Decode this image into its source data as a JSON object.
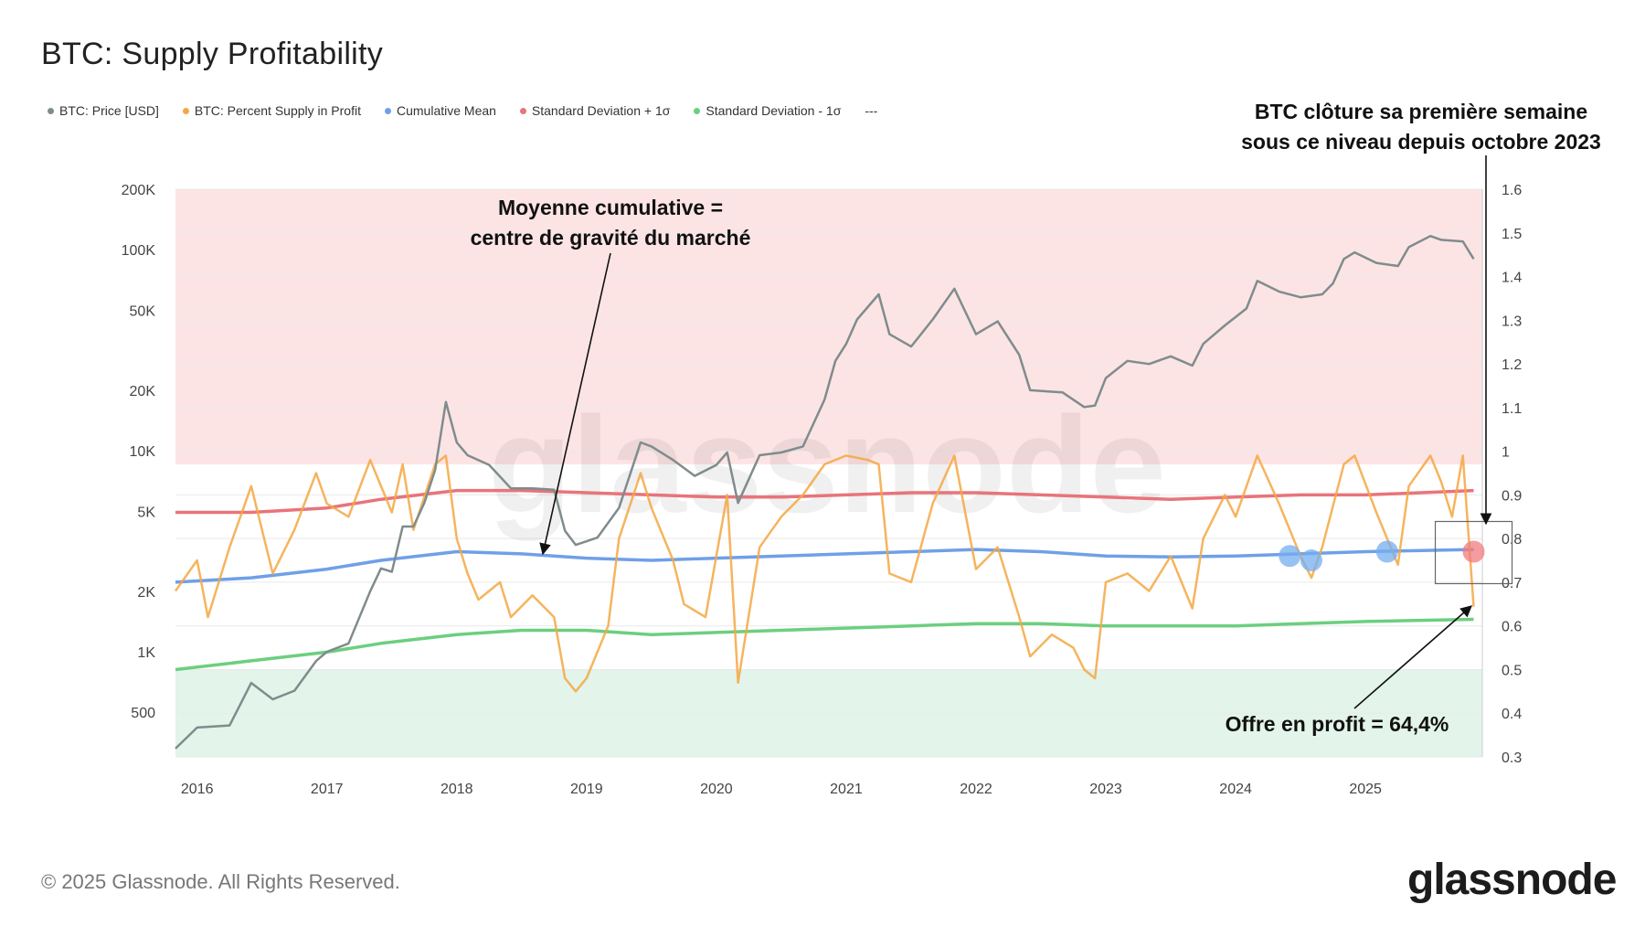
{
  "header": {
    "title": "BTC: Supply Profitability"
  },
  "legend": [
    {
      "label": "BTC: Price [USD]",
      "color": "#7f8c8d"
    },
    {
      "label": "BTC: Percent Supply in Profit",
      "color": "#f5a742"
    },
    {
      "label": "Cumulative Mean",
      "color": "#6fa0e8"
    },
    {
      "label": "Standard Deviation + 1σ",
      "color": "#e8747a"
    },
    {
      "label": "Standard Deviation - 1σ",
      "color": "#6ccf7f"
    },
    {
      "label": "---",
      "color": ""
    }
  ],
  "annotations": {
    "mean_line1": "Moyenne cumulative =",
    "mean_line2": "centre de gravité du marché",
    "close_line1": "BTC clôture sa première semaine",
    "close_line2": "sous ce niveau depuis octobre 2023",
    "profit": "Offre en profit = 64,4%"
  },
  "footer": {
    "copyright": "© 2025 Glassnode. All Rights Reserved.",
    "brand": "glassnode",
    "watermark": "glassnode"
  },
  "chart_data": {
    "type": "line",
    "x_range": [
      "2015-11",
      "2025-11"
    ],
    "xticks": [
      "2016",
      "2017",
      "2018",
      "2019",
      "2020",
      "2021",
      "2022",
      "2023",
      "2024",
      "2025"
    ],
    "y_left": {
      "scale": "log",
      "range": [
        300,
        200000
      ],
      "ticks": [
        {
          "value": 500,
          "label": "500"
        },
        {
          "value": 1000,
          "label": "1K"
        },
        {
          "value": 2000,
          "label": "2K"
        },
        {
          "value": 5000,
          "label": "5K"
        },
        {
          "value": 10000,
          "label": "10K"
        },
        {
          "value": 20000,
          "label": "20K"
        },
        {
          "value": 50000,
          "label": "50K"
        },
        {
          "value": 100000,
          "label": "100K"
        },
        {
          "value": 200000,
          "label": "200K"
        }
      ]
    },
    "y_right": {
      "scale": "linear",
      "range": [
        0.3,
        1.6
      ],
      "ticks": [
        "0.3",
        "0.4",
        "0.5",
        "0.6",
        "0.7",
        "0.8",
        "0.9",
        "1",
        "1.1",
        "1.2",
        "1.3",
        "1.4",
        "1.5",
        "1.6"
      ]
    },
    "bands": [
      {
        "name": "overheated",
        "color": "#fde4e4",
        "y_from": 0.97,
        "y_to": 1.6
      },
      {
        "name": "undervalued",
        "color": "#e3f4ea",
        "y_from": 0.3,
        "y_to": 0.5
      }
    ],
    "series": [
      {
        "name": "BTC: Price [USD]",
        "axis": "left",
        "color": "#7f8c8d",
        "points": [
          [
            "2015-11",
            330
          ],
          [
            "2016-01",
            420
          ],
          [
            "2016-04",
            430
          ],
          [
            "2016-06",
            700
          ],
          [
            "2016-08",
            580
          ],
          [
            "2016-10",
            640
          ],
          [
            "2016-12",
            900
          ],
          [
            "2017-01",
            1000
          ],
          [
            "2017-03",
            1100
          ],
          [
            "2017-05",
            2000
          ],
          [
            "2017-06",
            2600
          ],
          [
            "2017-07",
            2500
          ],
          [
            "2017-08",
            4200
          ],
          [
            "2017-09",
            4200
          ],
          [
            "2017-10",
            5500
          ],
          [
            "2017-11",
            8000
          ],
          [
            "2017-12",
            17500
          ],
          [
            "2018-01",
            11000
          ],
          [
            "2018-02",
            9500
          ],
          [
            "2018-04",
            8500
          ],
          [
            "2018-06",
            6500
          ],
          [
            "2018-08",
            6500
          ],
          [
            "2018-10",
            6400
          ],
          [
            "2018-11",
            4000
          ],
          [
            "2018-12",
            3400
          ],
          [
            "2019-02",
            3700
          ],
          [
            "2019-04",
            5200
          ],
          [
            "2019-06",
            11000
          ],
          [
            "2019-07",
            10500
          ],
          [
            "2019-09",
            9000
          ],
          [
            "2019-11",
            7500
          ],
          [
            "2020-01",
            8500
          ],
          [
            "2020-02",
            9800
          ],
          [
            "2020-03",
            5500
          ],
          [
            "2020-05",
            9500
          ],
          [
            "2020-07",
            9800
          ],
          [
            "2020-09",
            10500
          ],
          [
            "2020-11",
            18000
          ],
          [
            "2020-12",
            28000
          ],
          [
            "2021-01",
            34000
          ],
          [
            "2021-02",
            45000
          ],
          [
            "2021-04",
            60000
          ],
          [
            "2021-05",
            38000
          ],
          [
            "2021-07",
            33000
          ],
          [
            "2021-09",
            45000
          ],
          [
            "2021-11",
            64000
          ],
          [
            "2022-01",
            38000
          ],
          [
            "2022-03",
            44000
          ],
          [
            "2022-05",
            30000
          ],
          [
            "2022-06",
            20000
          ],
          [
            "2022-09",
            19500
          ],
          [
            "2022-11",
            16500
          ],
          [
            "2022-12",
            16800
          ],
          [
            "2023-01",
            23000
          ],
          [
            "2023-03",
            28000
          ],
          [
            "2023-05",
            27000
          ],
          [
            "2023-07",
            29500
          ],
          [
            "2023-09",
            26500
          ],
          [
            "2023-10",
            34000
          ],
          [
            "2023-12",
            42000
          ],
          [
            "2024-02",
            51000
          ],
          [
            "2024-03",
            70000
          ],
          [
            "2024-05",
            62000
          ],
          [
            "2024-07",
            58000
          ],
          [
            "2024-09",
            60000
          ],
          [
            "2024-10",
            68000
          ],
          [
            "2024-11",
            90000
          ],
          [
            "2024-12",
            97000
          ],
          [
            "2025-02",
            86000
          ],
          [
            "2025-04",
            83000
          ],
          [
            "2025-05",
            103000
          ],
          [
            "2025-07",
            117000
          ],
          [
            "2025-08",
            112000
          ],
          [
            "2025-10",
            110000
          ],
          [
            "2025-11",
            90000
          ]
        ]
      },
      {
        "name": "BTC: Percent Supply in Profit",
        "axis": "right",
        "color": "#f5a742",
        "points": [
          [
            "2015-11",
            0.68
          ],
          [
            "2016-01",
            0.75
          ],
          [
            "2016-02",
            0.62
          ],
          [
            "2016-04",
            0.78
          ],
          [
            "2016-06",
            0.92
          ],
          [
            "2016-08",
            0.72
          ],
          [
            "2016-10",
            0.82
          ],
          [
            "2016-12",
            0.95
          ],
          [
            "2017-01",
            0.88
          ],
          [
            "2017-03",
            0.85
          ],
          [
            "2017-05",
            0.98
          ],
          [
            "2017-07",
            0.86
          ],
          [
            "2017-08",
            0.97
          ],
          [
            "2017-09",
            0.82
          ],
          [
            "2017-11",
            0.97
          ],
          [
            "2017-12",
            0.99
          ],
          [
            "2018-01",
            0.8
          ],
          [
            "2018-02",
            0.72
          ],
          [
            "2018-03",
            0.66
          ],
          [
            "2018-05",
            0.7
          ],
          [
            "2018-06",
            0.62
          ],
          [
            "2018-08",
            0.67
          ],
          [
            "2018-10",
            0.62
          ],
          [
            "2018-11",
            0.48
          ],
          [
            "2018-12",
            0.45
          ],
          [
            "2019-01",
            0.48
          ],
          [
            "2019-03",
            0.6
          ],
          [
            "2019-04",
            0.8
          ],
          [
            "2019-06",
            0.95
          ],
          [
            "2019-07",
            0.87
          ],
          [
            "2019-09",
            0.75
          ],
          [
            "2019-10",
            0.65
          ],
          [
            "2019-12",
            0.62
          ],
          [
            "2020-02",
            0.9
          ],
          [
            "2020-03",
            0.47
          ],
          [
            "2020-05",
            0.78
          ],
          [
            "2020-07",
            0.85
          ],
          [
            "2020-09",
            0.9
          ],
          [
            "2020-11",
            0.97
          ],
          [
            "2021-01",
            0.99
          ],
          [
            "2021-03",
            0.98
          ],
          [
            "2021-04",
            0.97
          ],
          [
            "2021-05",
            0.72
          ],
          [
            "2021-07",
            0.7
          ],
          [
            "2021-09",
            0.88
          ],
          [
            "2021-11",
            0.99
          ],
          [
            "2022-01",
            0.73
          ],
          [
            "2022-03",
            0.78
          ],
          [
            "2022-05",
            0.62
          ],
          [
            "2022-06",
            0.53
          ],
          [
            "2022-08",
            0.58
          ],
          [
            "2022-10",
            0.55
          ],
          [
            "2022-11",
            0.5
          ],
          [
            "2022-12",
            0.48
          ],
          [
            "2023-01",
            0.7
          ],
          [
            "2023-03",
            0.72
          ],
          [
            "2023-05",
            0.68
          ],
          [
            "2023-07",
            0.76
          ],
          [
            "2023-09",
            0.64
          ],
          [
            "2023-10",
            0.8
          ],
          [
            "2023-12",
            0.9
          ],
          [
            "2024-01",
            0.85
          ],
          [
            "2024-03",
            0.99
          ],
          [
            "2024-05",
            0.88
          ],
          [
            "2024-07",
            0.76
          ],
          [
            "2024-08",
            0.71
          ],
          [
            "2024-09",
            0.78
          ],
          [
            "2024-11",
            0.97
          ],
          [
            "2024-12",
            0.99
          ],
          [
            "2025-02",
            0.86
          ],
          [
            "2025-04",
            0.74
          ],
          [
            "2025-05",
            0.92
          ],
          [
            "2025-07",
            0.99
          ],
          [
            "2025-08",
            0.93
          ],
          [
            "2025-09",
            0.85
          ],
          [
            "2025-10",
            0.99
          ],
          [
            "2025-11",
            0.644
          ]
        ]
      },
      {
        "name": "Cumulative Mean",
        "axis": "right",
        "color": "#6fa0e8",
        "points": [
          [
            "2015-11",
            0.7
          ],
          [
            "2016-06",
            0.71
          ],
          [
            "2017-01",
            0.73
          ],
          [
            "2017-06",
            0.75
          ],
          [
            "2018-01",
            0.77
          ],
          [
            "2018-07",
            0.765
          ],
          [
            "2019-01",
            0.755
          ],
          [
            "2019-07",
            0.75
          ],
          [
            "2020-01",
            0.755
          ],
          [
            "2020-07",
            0.76
          ],
          [
            "2021-01",
            0.765
          ],
          [
            "2021-07",
            0.77
          ],
          [
            "2022-01",
            0.775
          ],
          [
            "2022-07",
            0.77
          ],
          [
            "2023-01",
            0.76
          ],
          [
            "2023-07",
            0.758
          ],
          [
            "2024-01",
            0.76
          ],
          [
            "2024-07",
            0.765
          ],
          [
            "2025-01",
            0.77
          ],
          [
            "2025-11",
            0.775
          ]
        ]
      },
      {
        "name": "Standard Deviation + 1σ",
        "axis": "right",
        "color": "#e8747a",
        "points": [
          [
            "2015-11",
            0.86
          ],
          [
            "2016-06",
            0.86
          ],
          [
            "2017-01",
            0.87
          ],
          [
            "2017-06",
            0.89
          ],
          [
            "2018-01",
            0.91
          ],
          [
            "2018-07",
            0.91
          ],
          [
            "2019-01",
            0.905
          ],
          [
            "2019-07",
            0.9
          ],
          [
            "2020-01",
            0.895
          ],
          [
            "2020-07",
            0.895
          ],
          [
            "2021-01",
            0.9
          ],
          [
            "2021-07",
            0.905
          ],
          [
            "2022-01",
            0.905
          ],
          [
            "2022-07",
            0.9
          ],
          [
            "2023-01",
            0.895
          ],
          [
            "2023-07",
            0.89
          ],
          [
            "2024-01",
            0.895
          ],
          [
            "2024-07",
            0.9
          ],
          [
            "2025-01",
            0.9
          ],
          [
            "2025-11",
            0.91
          ]
        ]
      },
      {
        "name": "Standard Deviation - 1σ",
        "axis": "right",
        "color": "#6ccf7f",
        "points": [
          [
            "2015-11",
            0.5
          ],
          [
            "2016-06",
            0.52
          ],
          [
            "2017-01",
            0.54
          ],
          [
            "2017-06",
            0.56
          ],
          [
            "2018-01",
            0.58
          ],
          [
            "2018-07",
            0.59
          ],
          [
            "2019-01",
            0.59
          ],
          [
            "2019-07",
            0.58
          ],
          [
            "2020-01",
            0.585
          ],
          [
            "2020-07",
            0.59
          ],
          [
            "2021-01",
            0.595
          ],
          [
            "2021-07",
            0.6
          ],
          [
            "2022-01",
            0.605
          ],
          [
            "2022-07",
            0.605
          ],
          [
            "2023-01",
            0.6
          ],
          [
            "2023-07",
            0.6
          ],
          [
            "2024-01",
            0.6
          ],
          [
            "2024-07",
            0.605
          ],
          [
            "2025-01",
            0.61
          ],
          [
            "2025-11",
            0.615
          ]
        ]
      }
    ],
    "markers": [
      {
        "date": "2024-06",
        "y": 0.76,
        "color": "#74aef0"
      },
      {
        "date": "2024-08",
        "y": 0.75,
        "color": "#74aef0"
      },
      {
        "date": "2025-03",
        "y": 0.77,
        "color": "#74aef0"
      },
      {
        "date": "2025-11",
        "y": 0.77,
        "color": "#f07b7e"
      }
    ]
  }
}
